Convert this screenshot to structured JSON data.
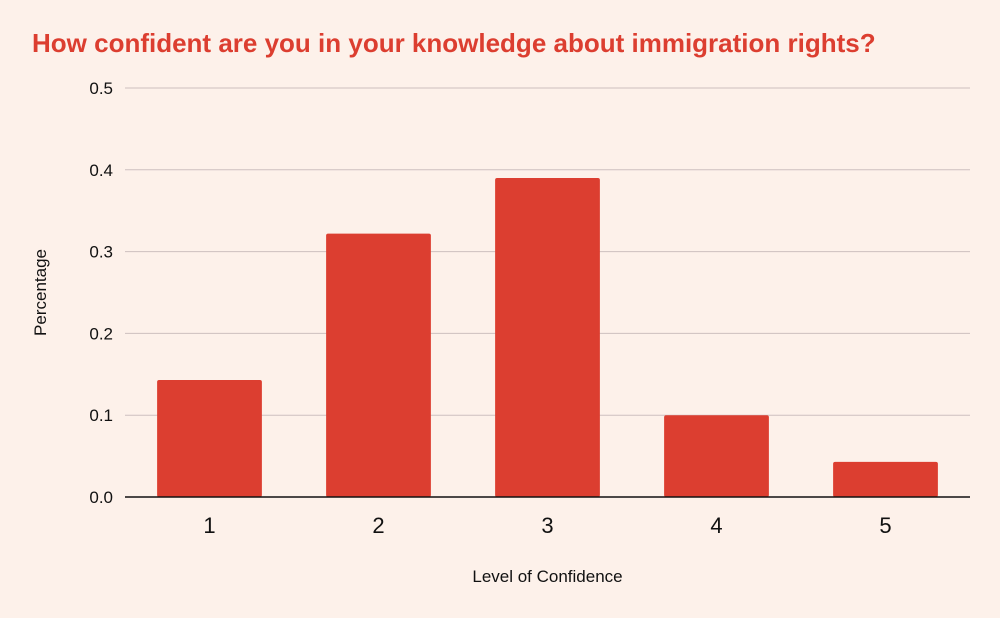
{
  "chart_data": {
    "type": "bar",
    "title": "How confident are you in your knowledge about immigration rights?",
    "xlabel": "Level of Confidence",
    "ylabel": "Percentage",
    "categories": [
      "1",
      "2",
      "3",
      "4",
      "5"
    ],
    "values": [
      0.143,
      0.322,
      0.39,
      0.1,
      0.043
    ],
    "ylim": [
      0,
      0.5
    ],
    "yticks": [
      "0.0",
      "0.1",
      "0.2",
      "0.3",
      "0.4",
      "0.5"
    ],
    "grid": true,
    "legend": "none",
    "colors": {
      "bar": "#dc3e30",
      "title": "#dc3e30",
      "background": "#fdf1ea",
      "gridline": "#cdbfbf",
      "axis": "#111111"
    }
  }
}
